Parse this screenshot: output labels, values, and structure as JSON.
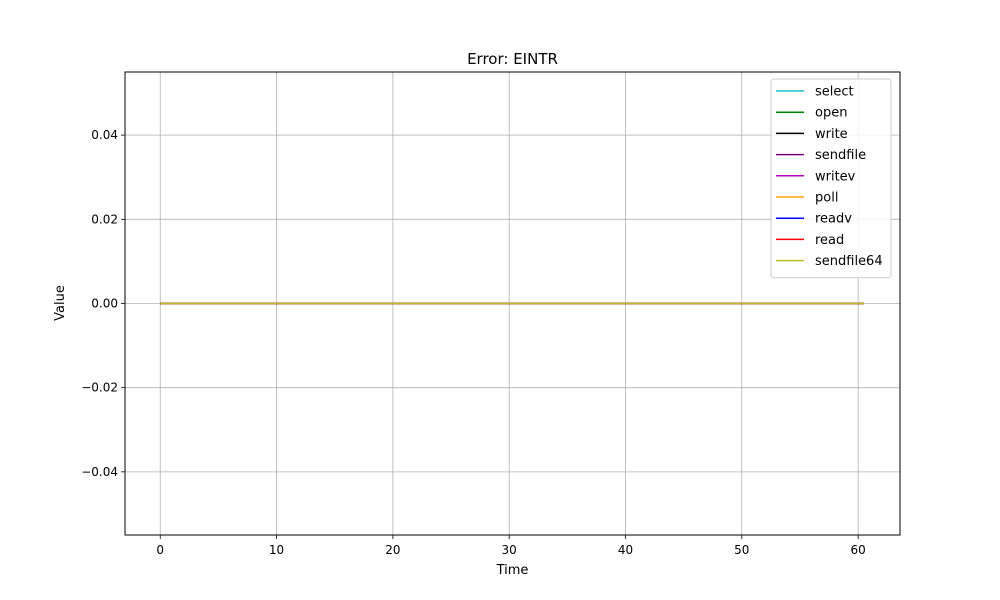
{
  "chart_data": {
    "type": "line",
    "title": "Error: EINTR",
    "xlabel": "Time",
    "ylabel": "Value",
    "xlim": [
      -3.03,
      63.6
    ],
    "ylim": [
      -0.055,
      0.055
    ],
    "xticks": [
      0,
      10,
      20,
      30,
      40,
      50,
      60
    ],
    "yticks": [
      -0.04,
      -0.02,
      0.0,
      0.02,
      0.04
    ],
    "ytick_labels": [
      "−0.04",
      "−0.02",
      "0.00",
      "0.02",
      "0.04"
    ],
    "grid": true,
    "legend_position": "top-right",
    "series": [
      {
        "name": "select",
        "color": "#17becf",
        "x": [
          0,
          60.5
        ],
        "y": [
          0,
          0
        ]
      },
      {
        "name": "open",
        "color": "#008000",
        "x": [
          0,
          60.5
        ],
        "y": [
          0,
          0
        ]
      },
      {
        "name": "write",
        "color": "#000000",
        "x": [
          0,
          60.5
        ],
        "y": [
          0,
          0
        ]
      },
      {
        "name": "sendfile",
        "color": "#800080",
        "x": [
          0,
          60.5
        ],
        "y": [
          0,
          0
        ]
      },
      {
        "name": "writev",
        "color": "#c000c0",
        "x": [
          0,
          60.5
        ],
        "y": [
          0,
          0
        ]
      },
      {
        "name": "poll",
        "color": "#ffa500",
        "x": [
          0,
          60.5
        ],
        "y": [
          0,
          0
        ]
      },
      {
        "name": "readv",
        "color": "#0000ff",
        "x": [
          0,
          60.5
        ],
        "y": [
          0,
          0
        ]
      },
      {
        "name": "read",
        "color": "#ff0000",
        "x": [
          0,
          60.5
        ],
        "y": [
          0,
          0
        ]
      },
      {
        "name": "sendfile64",
        "color": "#bcbd22",
        "x": [
          0,
          60.5
        ],
        "y": [
          0,
          0
        ]
      }
    ]
  }
}
